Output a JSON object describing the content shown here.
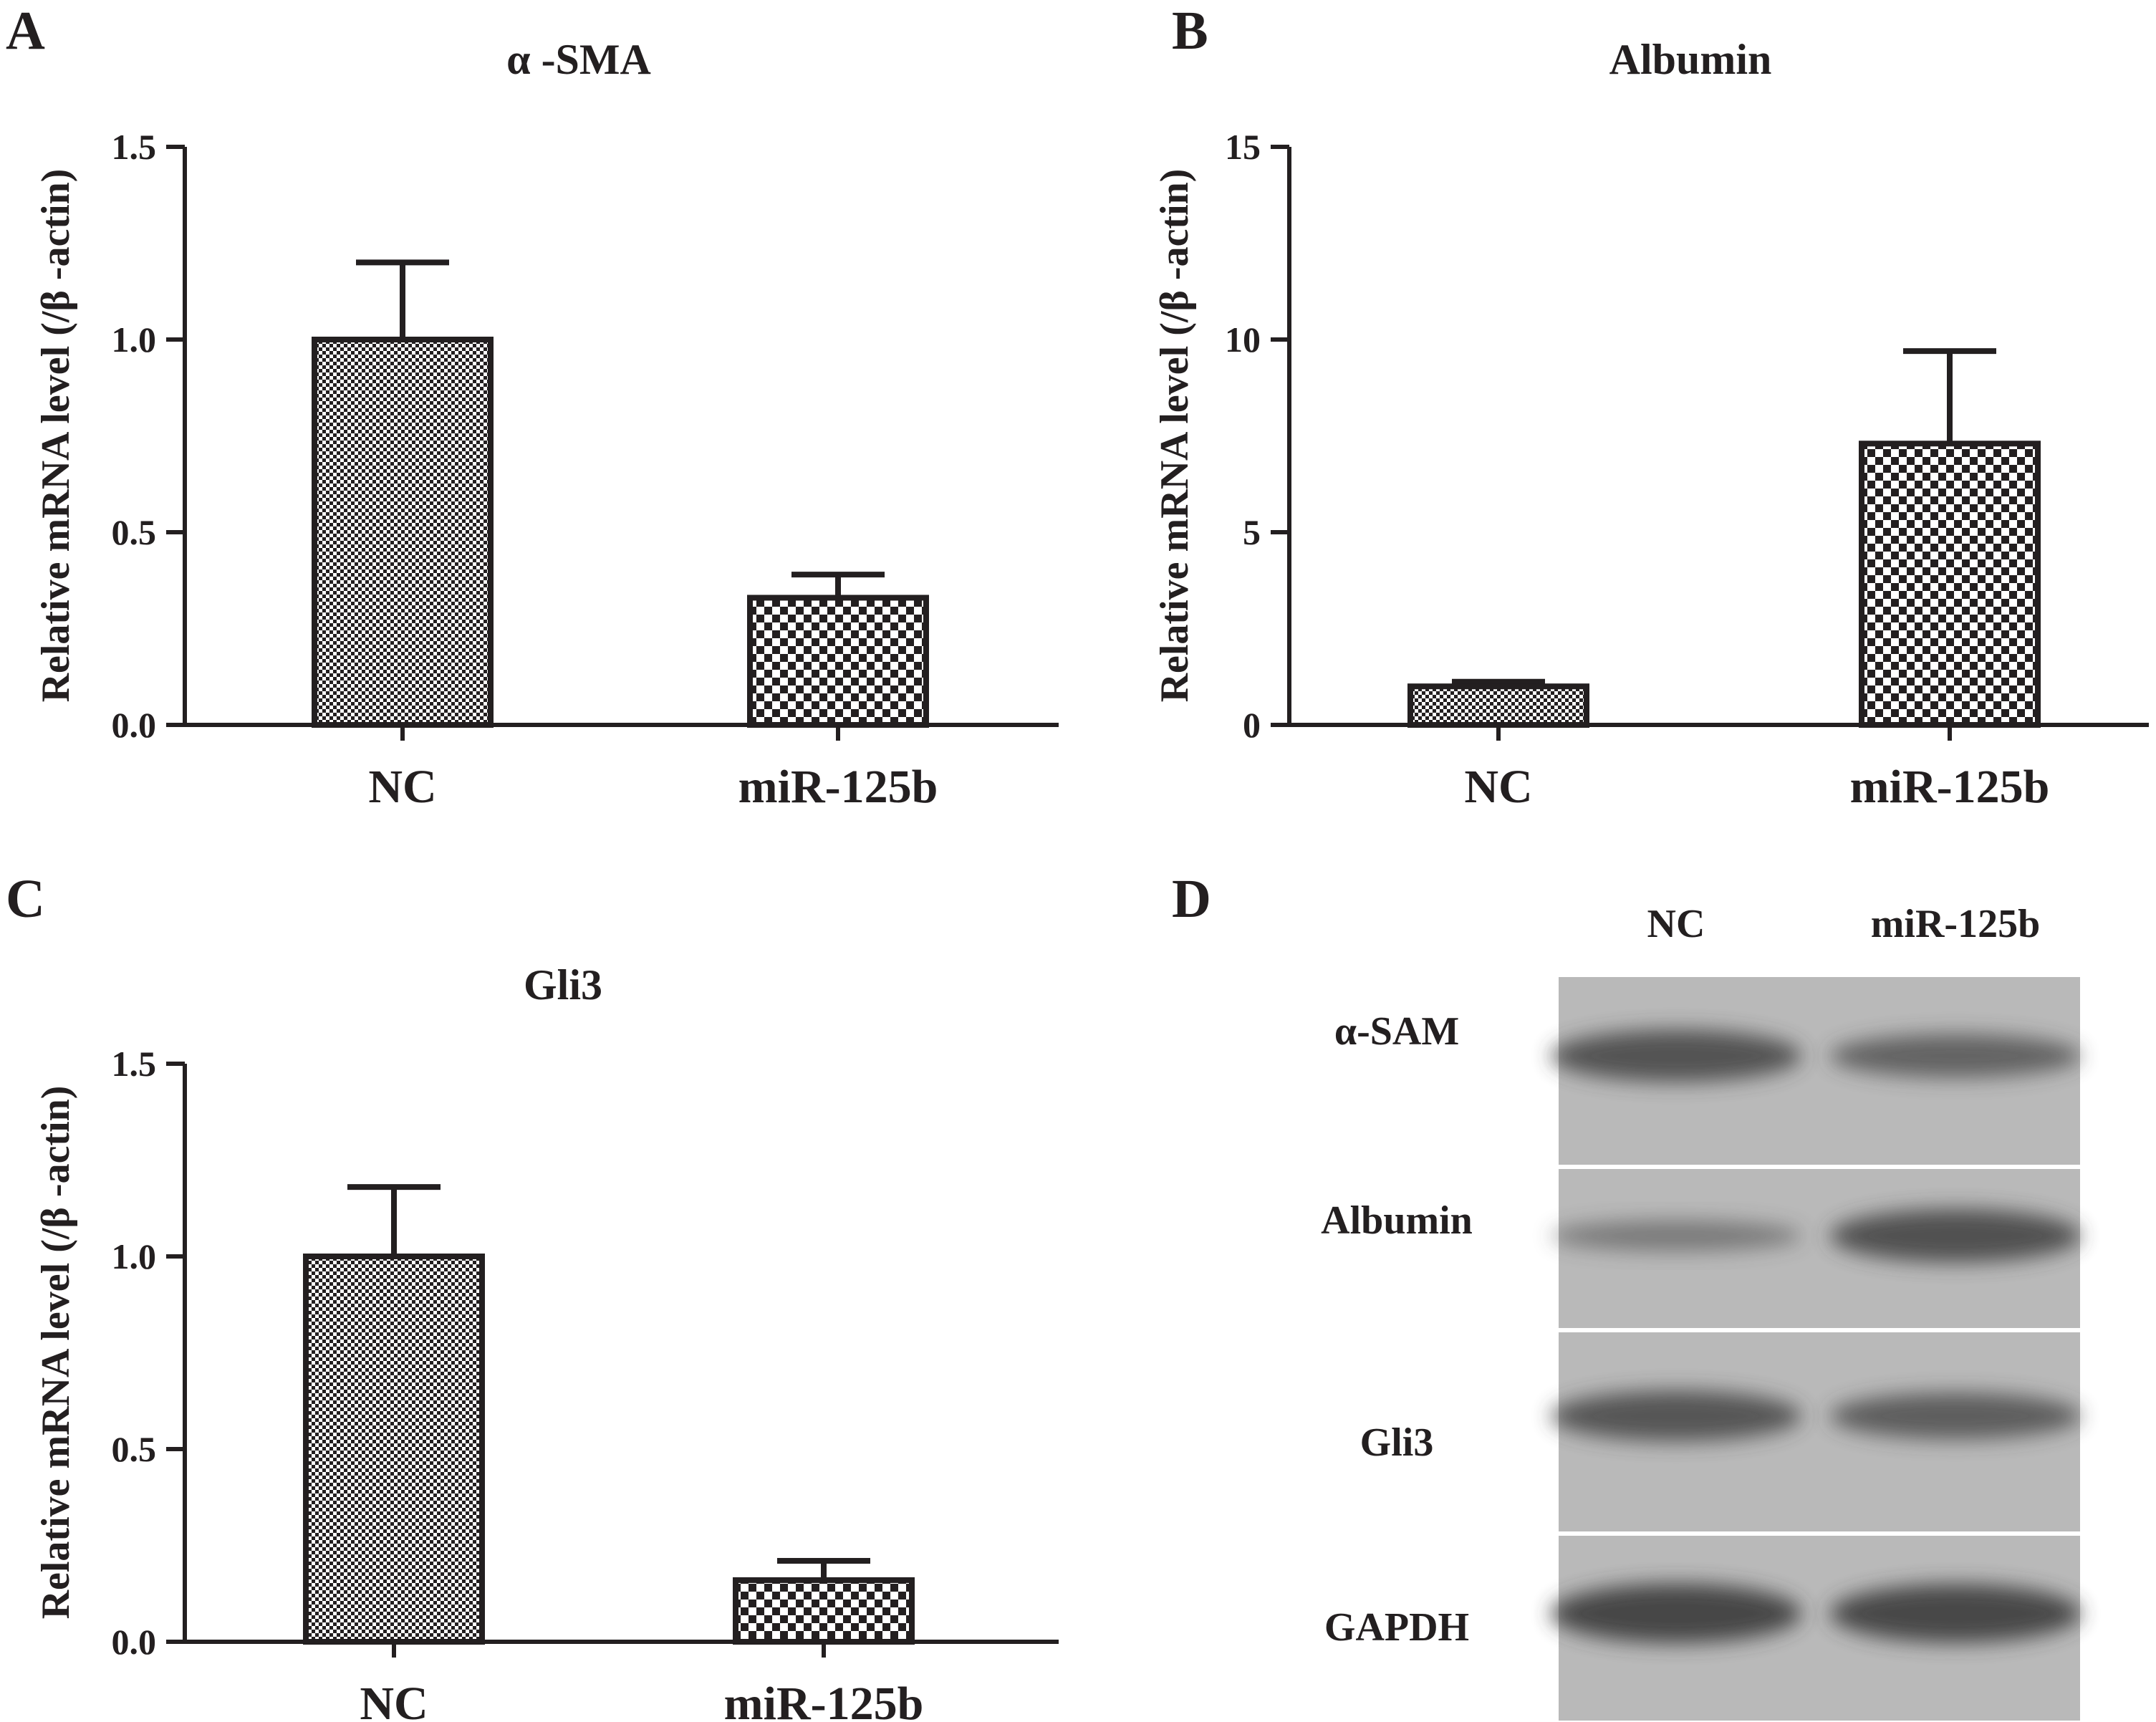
{
  "panels": {
    "A": {
      "letter": "A"
    },
    "B": {
      "letter": "B"
    },
    "C": {
      "letter": "C"
    },
    "D": {
      "letter": "D"
    }
  },
  "chart_data": [
    {
      "panel": "A",
      "type": "bar",
      "title": "α -SMA",
      "ylabel": "Relative mRNA level (/β -actin)",
      "categories": [
        "NC",
        "miR-125b"
      ],
      "values": [
        1.0,
        0.33
      ],
      "errors": [
        0.2,
        0.06
      ],
      "ylim": [
        0,
        1.5
      ],
      "yticks": [
        "0.0",
        "0.5",
        "1.0",
        "1.5"
      ],
      "ytick_values": [
        0,
        0.5,
        1.0,
        1.5
      ],
      "patterns": [
        "fine-check",
        "coarse-check"
      ]
    },
    {
      "panel": "B",
      "type": "bar",
      "title": "Albumin",
      "ylabel": "Relative mRNA level (/β -actin)",
      "categories": [
        "NC",
        "miR-125b"
      ],
      "values": [
        1.0,
        7.3
      ],
      "errors": [
        0.12,
        2.4
      ],
      "ylim": [
        0,
        15
      ],
      "yticks": [
        "0",
        "5",
        "10",
        "15"
      ],
      "ytick_values": [
        0,
        5,
        10,
        15
      ],
      "patterns": [
        "fine-check",
        "coarse-check"
      ]
    },
    {
      "panel": "C",
      "type": "bar",
      "title": "Gli3",
      "ylabel": "Relative mRNA level (/β -actin)",
      "categories": [
        "NC",
        "miR-125b"
      ],
      "values": [
        1.0,
        0.16
      ],
      "errors": [
        0.18,
        0.05
      ],
      "ylim": [
        0,
        1.5
      ],
      "yticks": [
        "0.0",
        "0.5",
        "1.0",
        "1.5"
      ],
      "ytick_values": [
        0,
        0.5,
        1.0,
        1.5
      ],
      "patterns": [
        "fine-check",
        "coarse-check"
      ]
    }
  ],
  "blot": {
    "lanes": [
      "NC",
      "miR-125b"
    ],
    "rows": [
      {
        "label": "α-SAM",
        "intensity": [
          0.75,
          0.55
        ]
      },
      {
        "label": "Albumin",
        "intensity": [
          0.25,
          0.78
        ]
      },
      {
        "label": "Gli3",
        "intensity": [
          0.72,
          0.62
        ]
      },
      {
        "label": "GAPDH",
        "intensity": [
          0.92,
          0.9
        ]
      }
    ],
    "background": "#b9b9b9",
    "band_color": "#3a3a3a"
  },
  "colors": {
    "ink": "#231f20",
    "bar_fill": "#ffffff"
  }
}
